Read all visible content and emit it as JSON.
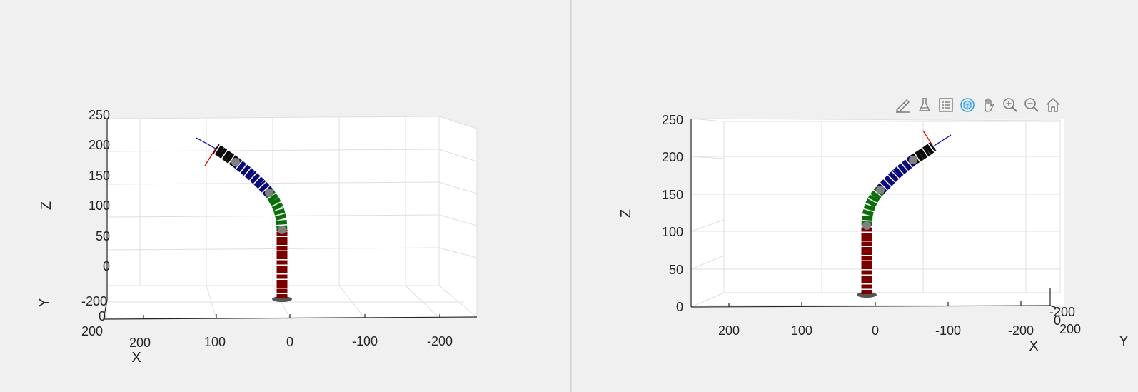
{
  "left_plot": {
    "axes": {
      "x_label": "X",
      "y_label": "Y",
      "z_label": "Z",
      "z_ticks": [
        "250",
        "200",
        "150",
        "100",
        "50",
        "0"
      ],
      "x_ticks": [
        "200",
        "100",
        "0",
        "-100",
        "-200"
      ],
      "y_ticks": [
        "-200",
        "0",
        "200"
      ]
    }
  },
  "right_plot": {
    "axes": {
      "x_label": "X",
      "y_label": "Y",
      "z_label": "Z",
      "z_ticks": [
        "250",
        "200",
        "150",
        "100",
        "50",
        "0"
      ],
      "x_ticks": [
        "200",
        "100",
        "0",
        "-100",
        "-200"
      ],
      "y_ticks": [
        "-200",
        "0",
        "200"
      ]
    }
  },
  "toolbar": {
    "buttons": [
      {
        "name": "brush-edit-icon"
      },
      {
        "name": "data-tips-icon"
      },
      {
        "name": "legend-icon"
      },
      {
        "name": "rotate-3d-icon",
        "active": true
      },
      {
        "name": "pan-hand-icon"
      },
      {
        "name": "zoom-in-icon"
      },
      {
        "name": "zoom-out-icon"
      },
      {
        "name": "home-restore-icon"
      }
    ]
  },
  "robot": {
    "segment_colors": [
      "#7a0000",
      "#0b6e0b",
      "#0a0a7a",
      "#0a0a0a"
    ],
    "base_color": "#555555",
    "joint_color": "#808080"
  }
}
